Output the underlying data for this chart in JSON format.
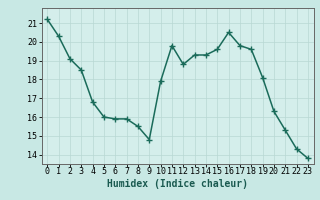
{
  "x": [
    0,
    1,
    2,
    3,
    4,
    5,
    6,
    7,
    8,
    9,
    10,
    11,
    12,
    13,
    14,
    15,
    16,
    17,
    18,
    19,
    20,
    21,
    22,
    23
  ],
  "y": [
    21.2,
    20.3,
    19.1,
    18.5,
    16.8,
    16.0,
    15.9,
    15.9,
    15.5,
    14.8,
    17.9,
    19.8,
    18.8,
    19.3,
    19.3,
    19.6,
    20.5,
    19.8,
    19.6,
    18.1,
    16.3,
    15.3,
    14.3,
    13.8
  ],
  "xlabel": "Humidex (Indice chaleur)",
  "ylim": [
    13.5,
    21.8
  ],
  "xlim": [
    -0.5,
    23.5
  ],
  "yticks": [
    14,
    15,
    16,
    17,
    18,
    19,
    20,
    21
  ],
  "xticks": [
    0,
    1,
    2,
    3,
    4,
    5,
    6,
    7,
    8,
    9,
    10,
    11,
    12,
    13,
    14,
    15,
    16,
    17,
    18,
    19,
    20,
    21,
    22,
    23
  ],
  "line_color": "#1a6b5a",
  "marker_color": "#1a6b5a",
  "bg_color": "#c8e8e4",
  "grid_color": "#b8d8d4",
  "axis_bg": "#d4eeeb",
  "label_fontsize": 7,
  "tick_fontsize": 6,
  "marker_size": 4,
  "line_width": 1.1
}
